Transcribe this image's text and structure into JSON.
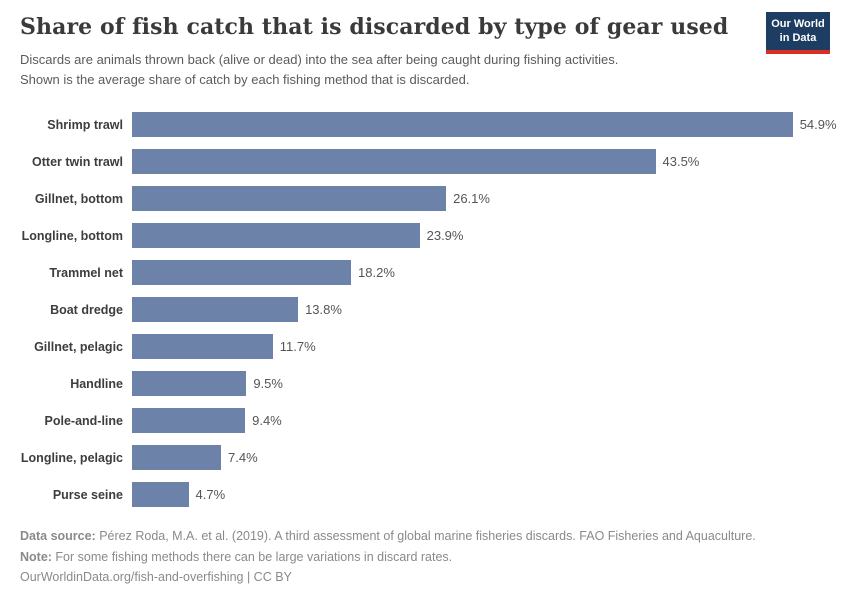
{
  "header": {
    "title": "Share of fish catch that is discarded by type of gear used",
    "subtitle_line1": "Discards are animals thrown back (alive or dead) into the sea after being caught during fishing activities.",
    "subtitle_line2": "Shown is the average share of catch by each fishing method that is discarded.",
    "logo": {
      "line1": "Our World",
      "line2": "in Data",
      "bg_color": "#1d3d63",
      "accent_color": "#d93025"
    }
  },
  "chart_data": {
    "type": "bar",
    "orientation": "horizontal",
    "title": "Share of fish catch that is discarded by type of gear used",
    "xlabel": "",
    "ylabel": "",
    "xlim": [
      0,
      58
    ],
    "grid": false,
    "legend": "none",
    "bar_color": "#6c82a8",
    "categories": [
      "Shrimp trawl",
      "Otter twin trawl",
      "Gillnet, bottom",
      "Longline, bottom",
      "Trammel net",
      "Boat dredge",
      "Gillnet, pelagic",
      "Handline",
      "Pole-and-line",
      "Longline, pelagic",
      "Purse seine"
    ],
    "values": [
      54.9,
      43.5,
      26.1,
      23.9,
      18.2,
      13.8,
      11.7,
      9.5,
      9.4,
      7.4,
      4.7
    ],
    "value_labels": [
      "54.9%",
      "43.5%",
      "26.1%",
      "23.9%",
      "18.2%",
      "13.8%",
      "11.7%",
      "9.5%",
      "9.4%",
      "7.4%",
      "4.7%"
    ]
  },
  "footer": {
    "data_source_label": "Data source:",
    "data_source_text": " Pérez Roda, M.A. et al. (2019). A third assessment of global marine fisheries discards. FAO Fisheries and Aquaculture.",
    "note_label": "Note:",
    "note_text": " For some fishing methods there can be large variations in discard rates.",
    "link": "OurWorldinData.org/fish-and-overfishing | CC BY"
  }
}
